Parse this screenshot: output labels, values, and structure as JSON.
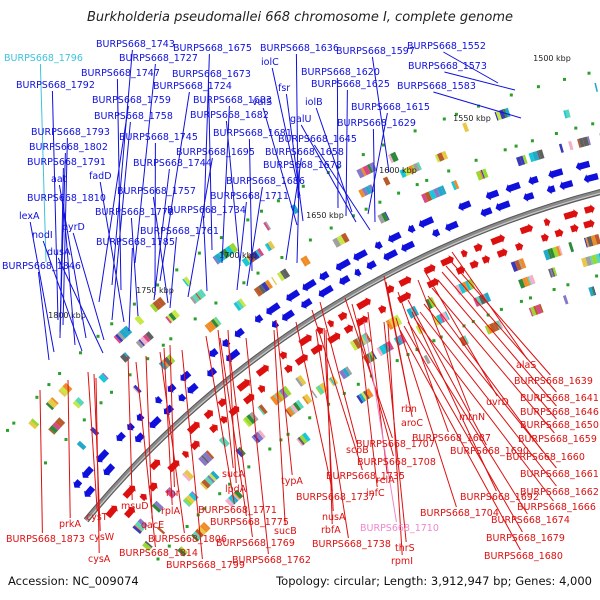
{
  "title": "Burkholderia pseudomallei 668 chromosome I, complete genome",
  "footer": {
    "accession": "Accession: NC_009074",
    "summary": "Topology: circular; Length: 3,912,947 bp; Genes: 4,000"
  },
  "colors": {
    "forward_strand": "#1010dd",
    "reverse_strand": "#dd1010",
    "highlight_forward": "#3ec4dc",
    "highlight_reverse": "#ee88cc",
    "backbone": "#8a8a8a",
    "gc_marker": "#2aa02a"
  },
  "kbp_ticks": [
    "1500 kbp",
    "1550 kbp",
    "1600 kbp",
    "1650 kbp",
    "1700 kbp",
    "1750 kbp",
    "1800 kbp"
  ],
  "forward_labels": [
    "BURPS668_1796",
    "BURPS668_1743",
    "BURPS668_1675",
    "BURPS668_1636",
    "BURPS668_1597",
    "BURPS668_1552",
    "BURPS668_1727",
    "iolC",
    "BURPS668_1573",
    "BURPS668_1792",
    "BURPS668_1747",
    "BURPS668_1673",
    "BURPS668_1620",
    "BURPS668_1724",
    "fsr",
    "BURPS668_1625",
    "BURPS668_1583",
    "BURPS668_1759",
    "BURPS668_1683",
    "valS",
    "iolB",
    "BURPS668_1758",
    "BURPS668_1682",
    "galU",
    "BURPS668_1615",
    "BURPS668_1793",
    "BURPS668_1745",
    "BURPS668_1681",
    "BURPS668_1629",
    "BURPS668_1802",
    "BURPS668_1645",
    "BURPS668_1695",
    "BURPS668_1658",
    "BURPS668_1791",
    "BURPS668_1744",
    "BURPS668_1678",
    "aat",
    "fadD",
    "BURPS668_1686",
    "BURPS668_1757",
    "BURPS668_1810",
    "BURPS668_1711",
    "lexA",
    "BURPS668_1778",
    "BURPS668_1734",
    "pyrD",
    "nodI",
    "BURPS668_1761",
    "dusA",
    "BURPS668_1785",
    "BURPS668_1846"
  ],
  "reverse_labels": [
    "alaS",
    "BURPS668_1639",
    "uvrD",
    "BURPS668_1641",
    "rbn",
    "mtnN",
    "BURPS668_1646",
    "aroC",
    "BURPS668_1650",
    "BURPS668_1707",
    "BURPS668_1687",
    "BURPS668_1659",
    "scpB",
    "BURPS668_1708",
    "BURPS668_1690",
    "BURPS668_1660",
    "sucA",
    "BURPS668_1735",
    "relA",
    "BURPS668_1661",
    "rnr",
    "msuD",
    "lpdA",
    "typA",
    "infC",
    "BURPS668_1692",
    "BURPS668_1662",
    "cysT",
    "rplA",
    "BURPS668_1771",
    "BURPS668_1737",
    "BURPS668_1704",
    "BURPS668_1666",
    "prkA",
    "qacE",
    "BURPS668_1775",
    "sucB",
    "nusA",
    "rbfA",
    "BURPS668_1710",
    "BURPS668_1674",
    "cysW",
    "BURPS668_1806",
    "BURPS668_1769",
    "BURPS668_1738",
    "BURPS668_1873",
    "cysA",
    "BURPS668_1814",
    "thrS",
    "BURPS668_1679",
    "rpmI",
    "BURPS668_1762",
    "BURPS668_1799",
    "BURPS668_1680"
  ]
}
